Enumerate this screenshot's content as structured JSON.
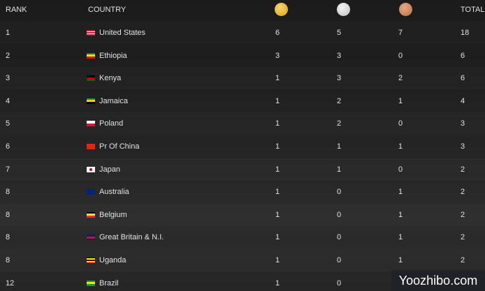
{
  "header": {
    "rank": "RANK",
    "country": "COUNTRY",
    "total": "TOTAL"
  },
  "table": {
    "rows": [
      {
        "rank": 1,
        "country": "United States",
        "gold": 6,
        "silver": 5,
        "bronze": 7,
        "total": 18
      },
      {
        "rank": 2,
        "country": "Ethiopia",
        "gold": 3,
        "silver": 3,
        "bronze": 0,
        "total": 6
      },
      {
        "rank": 3,
        "country": "Kenya",
        "gold": 1,
        "silver": 3,
        "bronze": 2,
        "total": 6
      },
      {
        "rank": 4,
        "country": "Jamaica",
        "gold": 1,
        "silver": 2,
        "bronze": 1,
        "total": 4
      },
      {
        "rank": 5,
        "country": "Poland",
        "gold": 1,
        "silver": 2,
        "bronze": 0,
        "total": 3
      },
      {
        "rank": 6,
        "country": "Pr Of China",
        "gold": 1,
        "silver": 1,
        "bronze": 1,
        "total": 3
      },
      {
        "rank": 7,
        "country": "Japan",
        "gold": 1,
        "silver": 1,
        "bronze": 0,
        "total": 2
      },
      {
        "rank": 8,
        "country": "Australia",
        "gold": 1,
        "silver": 0,
        "bronze": 1,
        "total": 2
      },
      {
        "rank": 8,
        "country": "Belgium",
        "gold": 1,
        "silver": 0,
        "bronze": 1,
        "total": 2
      },
      {
        "rank": 8,
        "country": "Great Britain & N.I.",
        "gold": 1,
        "silver": 0,
        "bronze": 1,
        "total": 2
      },
      {
        "rank": 8,
        "country": "Uganda",
        "gold": 1,
        "silver": 0,
        "bronze": 1,
        "total": 2
      },
      {
        "rank": 12,
        "country": "Brazil",
        "gold": 1,
        "silver": 0
      }
    ]
  },
  "watermark": "Yoozhibo.com"
}
